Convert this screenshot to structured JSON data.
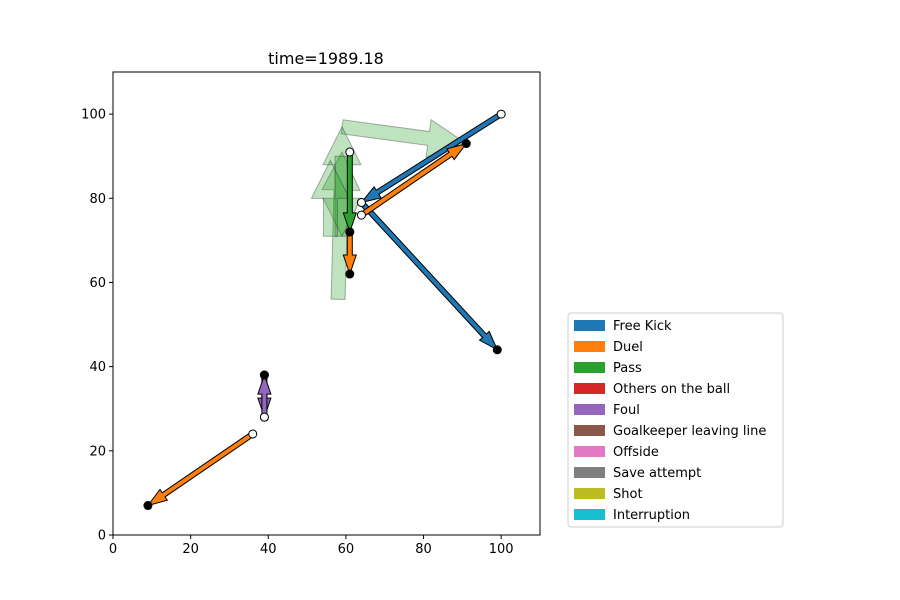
{
  "chart_data": {
    "type": "scatter",
    "title": "time=1989.18",
    "xlabel": "",
    "ylabel": "",
    "xlim": [
      0,
      110
    ],
    "ylim": [
      0,
      110
    ],
    "xticks": [
      0,
      20,
      40,
      60,
      80,
      100
    ],
    "yticks": [
      0,
      20,
      40,
      60,
      80,
      100
    ],
    "legend": {
      "position": "right-bottom",
      "entries": [
        {
          "label": "Free Kick",
          "color": "#1f77b4"
        },
        {
          "label": "Duel",
          "color": "#ff7f0e"
        },
        {
          "label": "Pass",
          "color": "#2ca02c"
        },
        {
          "label": "Others on the ball",
          "color": "#d62728"
        },
        {
          "label": "Foul",
          "color": "#9467bd"
        },
        {
          "label": "Goalkeeper leaving line",
          "color": "#8c564b"
        },
        {
          "label": "Offside",
          "color": "#e377c2"
        },
        {
          "label": "Save attempt",
          "color": "#7f7f7f"
        },
        {
          "label": "Shot",
          "color": "#bcbd22"
        },
        {
          "label": "Interruption",
          "color": "#17becf"
        }
      ]
    },
    "faded_events": [
      {
        "type": "Pass",
        "start": [
          59,
          97
        ],
        "end": [
          91,
          93
        ]
      },
      {
        "type": "Pass",
        "start": [
          58,
          56
        ],
        "end": [
          59,
          91
        ]
      },
      {
        "type": "Pass",
        "start": [
          59,
          71
        ],
        "end": [
          59,
          97
        ]
      },
      {
        "type": "Pass",
        "start": [
          59,
          90
        ],
        "end": [
          59,
          71
        ]
      },
      {
        "type": "Pass",
        "start": [
          56,
          71
        ],
        "end": [
          56,
          89
        ]
      }
    ],
    "events": [
      {
        "type": "Free Kick",
        "start": [
          100,
          100
        ],
        "end": [
          64,
          79
        ]
      },
      {
        "type": "Free Kick",
        "start": [
          64,
          79
        ],
        "end": [
          99,
          44
        ]
      },
      {
        "type": "Duel",
        "start": [
          64,
          76
        ],
        "end": [
          91,
          93
        ]
      },
      {
        "type": "Duel",
        "start": [
          61,
          72
        ],
        "end": [
          61,
          62
        ]
      },
      {
        "type": "Pass",
        "start": [
          61,
          91
        ],
        "end": [
          61,
          72
        ]
      },
      {
        "type": "Foul",
        "start": [
          39,
          38
        ],
        "end": [
          39,
          28
        ]
      },
      {
        "type": "Foul",
        "start": [
          39,
          28
        ],
        "end": [
          39,
          38
        ]
      },
      {
        "type": "Duel",
        "start": [
          36,
          24
        ],
        "end": [
          9,
          7
        ]
      }
    ]
  }
}
